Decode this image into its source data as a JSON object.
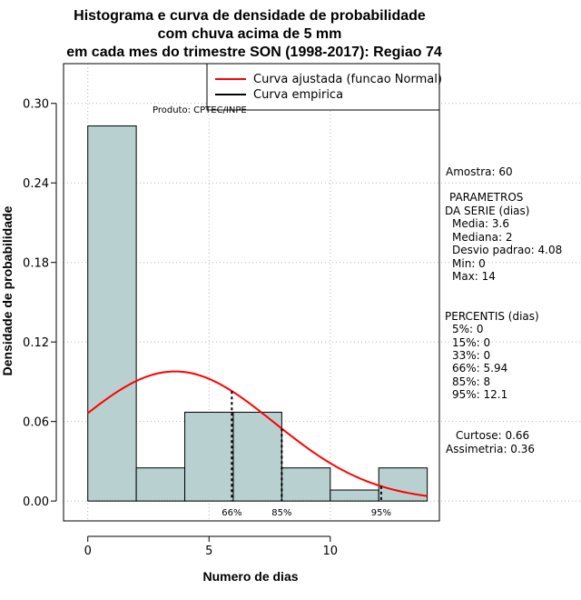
{
  "chart_data": {
    "type": "bar",
    "title_lines": [
      "Histograma e curva de densidade de probabilidade",
      "com chuva acima de 5 mm",
      "em cada mes do trimestre SON (1998-2017): Regiao 74"
    ],
    "xlabel": "Numero de dias",
    "ylabel": "Densidade de probabilidade",
    "xlim": [
      -1,
      14.5
    ],
    "ylim": [
      -0.015,
      0.33
    ],
    "x_ticks": [
      0,
      5,
      10
    ],
    "y_ticks": [
      0.0,
      0.06,
      0.12,
      0.18,
      0.24,
      0.3
    ],
    "y_tick_labels": [
      "0.00",
      "0.06",
      "0.12",
      "0.18",
      "0.24",
      "0.30"
    ],
    "bins": [
      {
        "start": 0,
        "end": 2,
        "density": 0.283
      },
      {
        "start": 2,
        "end": 4,
        "density": 0.025
      },
      {
        "start": 4,
        "end": 6,
        "density": 0.067
      },
      {
        "start": 6,
        "end": 8,
        "density": 0.067
      },
      {
        "start": 8,
        "end": 10,
        "density": 0.025
      },
      {
        "start": 10,
        "end": 12,
        "density": 0.0083
      },
      {
        "start": 12,
        "end": 14,
        "density": 0.025
      }
    ],
    "normal_curve": {
      "mean": 3.6,
      "sd": 4.08,
      "x_range": [
        0,
        14
      ],
      "color": "#ff0000"
    },
    "empirical_lines": [
      {
        "x": 5.94,
        "label": "66%"
      },
      {
        "x": 8,
        "label": "85%"
      },
      {
        "x": 12.1,
        "label": "95%"
      }
    ],
    "legend": {
      "position": "top-right",
      "entries": [
        {
          "label": "Curva ajustada (funcao Normal)",
          "color": "#ff0000"
        },
        {
          "label": "Curva empirica",
          "color": "#000000"
        }
      ]
    },
    "product_label": "Produto: CPTEC/INPE",
    "bar_color": "#b8d0cf"
  },
  "stats_panel": {
    "amostra": "Amostra: 60",
    "parametros_title": "PARAMETROS",
    "parametros_subtitle": "DA SERIE (dias)",
    "media": "Media: 3.6",
    "mediana": "Mediana: 2",
    "desvio": "Desvio padrao: 4.08",
    "min": "Min: 0",
    "max": "Max: 14",
    "percentis_title": "PERCENTIS (dias)",
    "p5": "5%: 0",
    "p15": "15%: 0",
    "p33": "33%: 0",
    "p66": "66%: 5.94",
    "p85": "85%: 8",
    "p95": "95%: 12.1",
    "curtose": "Curtose: 0.66",
    "assimetria": "Assimetria: 0.36"
  }
}
